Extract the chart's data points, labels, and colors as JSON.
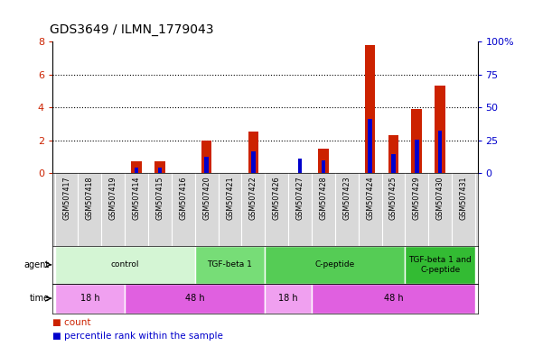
{
  "title": "GDS3649 / ILMN_1779043",
  "samples": [
    "GSM507417",
    "GSM507418",
    "GSM507419",
    "GSM507414",
    "GSM507415",
    "GSM507416",
    "GSM507420",
    "GSM507421",
    "GSM507422",
    "GSM507426",
    "GSM507427",
    "GSM507428",
    "GSM507423",
    "GSM507424",
    "GSM507425",
    "GSM507429",
    "GSM507430",
    "GSM507431"
  ],
  "count_values": [
    0,
    0,
    0,
    0.7,
    0.7,
    0,
    2.0,
    0,
    2.5,
    0,
    0,
    1.5,
    0,
    7.8,
    2.3,
    3.9,
    5.3,
    0
  ],
  "percentile_values": [
    0,
    0,
    0,
    0.35,
    0.35,
    0,
    1.0,
    0,
    1.3,
    0,
    0.85,
    0.75,
    0,
    3.3,
    1.15,
    2.05,
    2.55,
    0
  ],
  "ylim_left": [
    0,
    8
  ],
  "ylim_right": [
    0,
    100
  ],
  "yticks_left": [
    0,
    2,
    4,
    6,
    8
  ],
  "yticks_right": [
    0,
    25,
    50,
    75,
    100
  ],
  "ytick_labels_right": [
    "0",
    "25",
    "50",
    "75",
    "100%"
  ],
  "agent_groups": [
    {
      "label": "control",
      "start": 0,
      "end": 6,
      "color": "#d4f5d4"
    },
    {
      "label": "TGF-beta 1",
      "start": 6,
      "end": 9,
      "color": "#77dd77"
    },
    {
      "label": "C-peptide",
      "start": 9,
      "end": 15,
      "color": "#55cc55"
    },
    {
      "label": "TGF-beta 1 and\nC-peptide",
      "start": 15,
      "end": 18,
      "color": "#33bb33"
    }
  ],
  "time_groups": [
    {
      "label": "18 h",
      "start": 0,
      "end": 3,
      "color": "#f0a0f0"
    },
    {
      "label": "48 h",
      "start": 3,
      "end": 9,
      "color": "#e060e0"
    },
    {
      "label": "18 h",
      "start": 9,
      "end": 11,
      "color": "#f0a0f0"
    },
    {
      "label": "48 h",
      "start": 11,
      "end": 18,
      "color": "#e060e0"
    }
  ],
  "count_color": "#cc2200",
  "percentile_color": "#0000cc",
  "bg_color": "#ffffff",
  "sample_bg_color": "#d8d8d8",
  "left_yaxis_color": "#cc2200",
  "right_yaxis_color": "#0000cc",
  "legend_count_color": "#cc2200",
  "legend_pct_color": "#0000cc"
}
